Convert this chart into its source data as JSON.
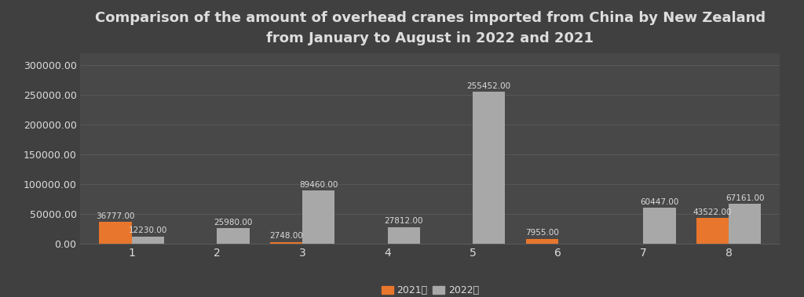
{
  "title": "Comparison of the amount of overhead cranes imported from China by New Zealand\nfrom January to August in 2022 and 2021",
  "months": [
    1,
    2,
    3,
    4,
    5,
    6,
    7,
    8
  ],
  "values_2021": [
    36777.0,
    0,
    2748.0,
    0,
    0,
    7955.0,
    0,
    43522.0
  ],
  "values_2022": [
    12230.0,
    25980.0,
    89460.0,
    27812.0,
    255452.0,
    0,
    60447.0,
    67161.0
  ],
  "color_2021": "#E8762C",
  "color_2022": "#A8A8A8",
  "background_color": "#404040",
  "plot_bg_color": "#484848",
  "text_color": "#DDDDDD",
  "grid_color": "#5A5A5A",
  "ylim": [
    0,
    320000
  ],
  "yticks": [
    0,
    50000,
    100000,
    150000,
    200000,
    250000,
    300000
  ],
  "ytick_labels": [
    "0.00",
    "50000.00",
    "100000.00",
    "150000.00",
    "200000.00",
    "250000.00",
    "300000.00"
  ],
  "bar_width": 0.38,
  "legend_2021": "2021年",
  "legend_2022": "2022年",
  "label_fontsize": 7.5,
  "title_fontsize": 13,
  "axis_fontsize": 9,
  "xtick_fontsize": 10
}
